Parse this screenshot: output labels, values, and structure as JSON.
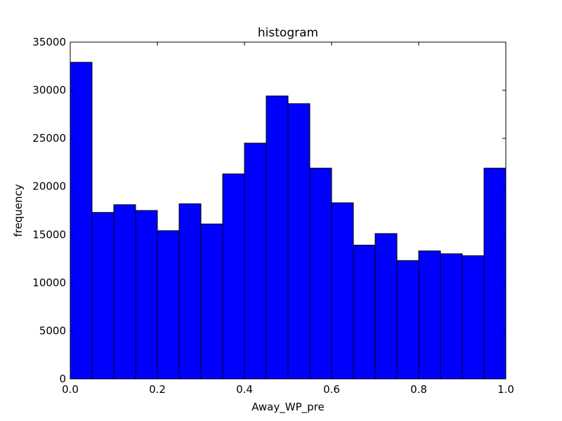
{
  "chart_data": {
    "type": "bar",
    "title": "histogram",
    "xlabel": "Away_WP_pre",
    "ylabel": "frequency",
    "xlim": [
      0.0,
      1.0
    ],
    "ylim": [
      0,
      35000
    ],
    "bin_edges": [
      0.0,
      0.05,
      0.1,
      0.15,
      0.2,
      0.25,
      0.3,
      0.35,
      0.4,
      0.45,
      0.5,
      0.55,
      0.6,
      0.65,
      0.7,
      0.75,
      0.8,
      0.85,
      0.9,
      0.95,
      1.0
    ],
    "values": [
      32900,
      17300,
      18100,
      17500,
      15400,
      18200,
      16100,
      21300,
      24500,
      29400,
      28600,
      21900,
      18300,
      13900,
      15100,
      12300,
      13300,
      13000,
      12800,
      21900
    ],
    "xticks": [
      0.0,
      0.2,
      0.4,
      0.6,
      0.8,
      1.0
    ],
    "xtick_labels": [
      "0.0",
      "0.2",
      "0.4",
      "0.6",
      "0.8",
      "1.0"
    ],
    "yticks": [
      0,
      5000,
      10000,
      15000,
      20000,
      25000,
      30000,
      35000
    ],
    "ytick_labels": [
      "0",
      "5000",
      "10000",
      "15000",
      "20000",
      "25000",
      "30000",
      "35000"
    ],
    "grid": false,
    "bar_color": "#0000ff",
    "edge_color": "#000000"
  }
}
